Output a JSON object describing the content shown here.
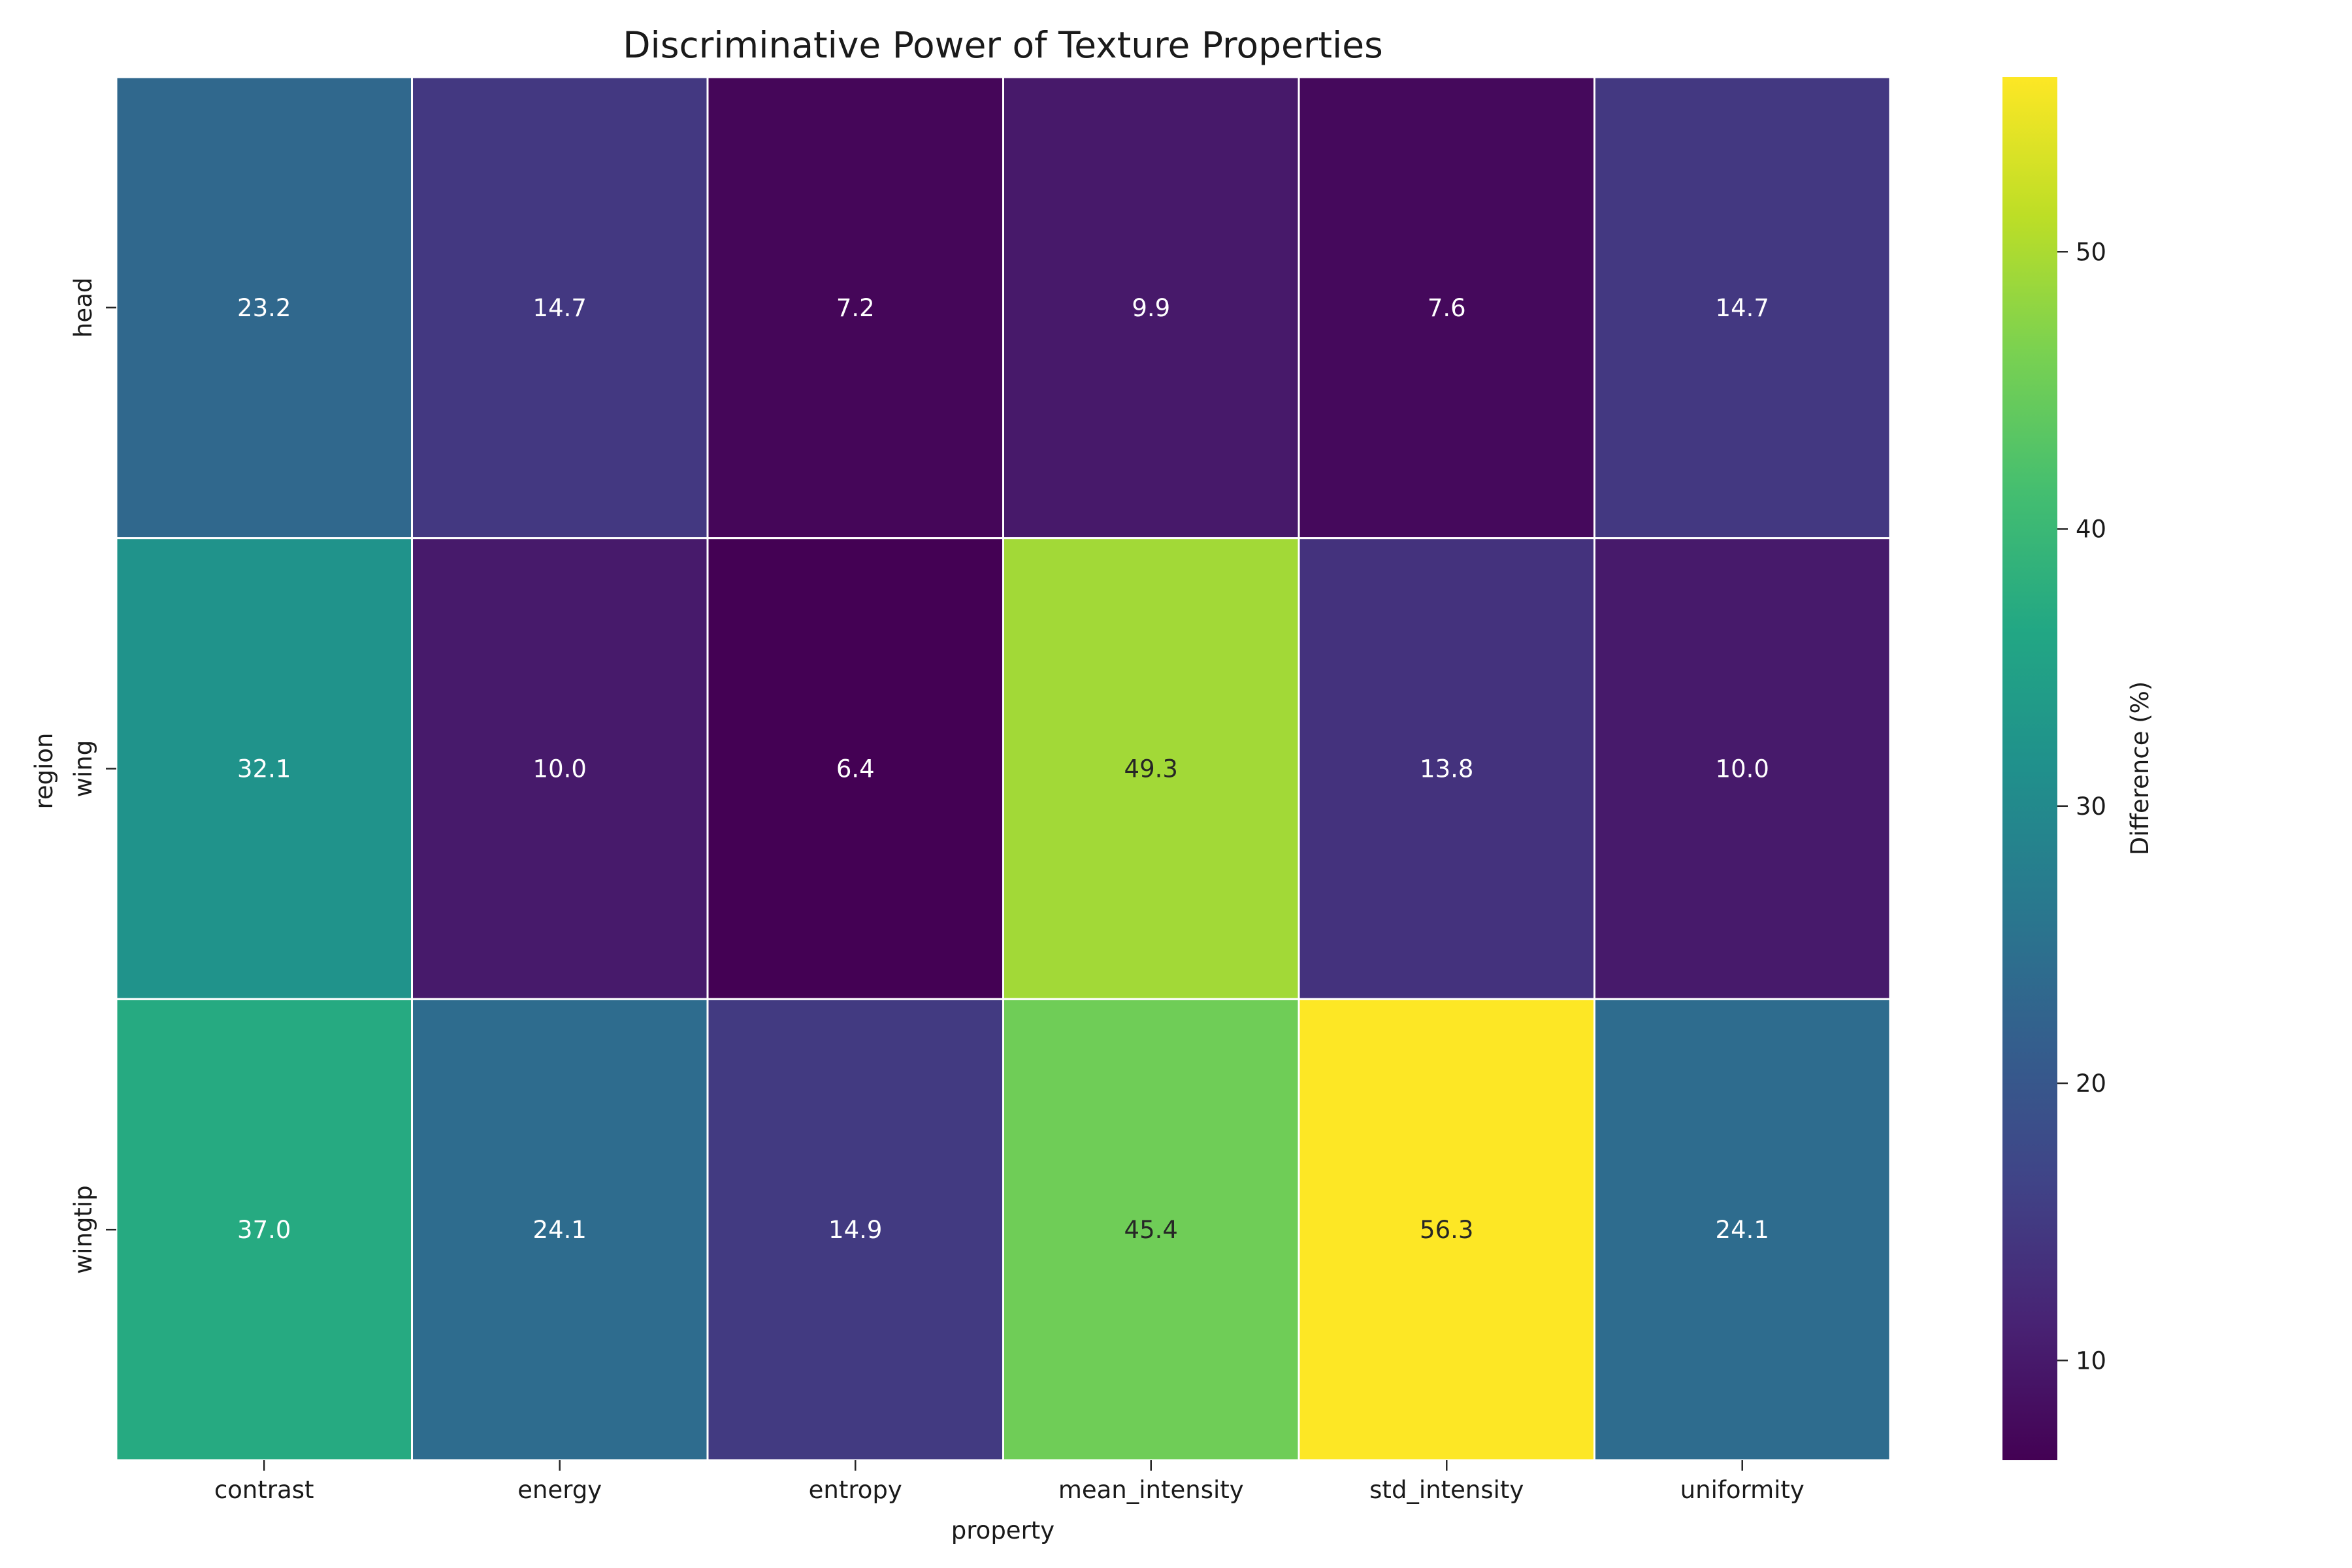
{
  "chart_data": {
    "type": "heatmap",
    "title": "Discriminative Power of Texture Properties",
    "xlabel": "property",
    "ylabel": "region",
    "x_categories": [
      "contrast",
      "energy",
      "entropy",
      "mean_intensity",
      "std_intensity",
      "uniformity"
    ],
    "y_categories": [
      "head",
      "wing",
      "wingtip"
    ],
    "values": [
      [
        23.2,
        14.7,
        7.2,
        9.9,
        7.6,
        14.7
      ],
      [
        32.1,
        10.0,
        6.4,
        49.3,
        13.8,
        10.0
      ],
      [
        37.0,
        24.1,
        14.9,
        45.4,
        56.3,
        24.1
      ]
    ],
    "colormap": "viridis",
    "color_range": [
      6.4,
      56.3
    ],
    "colorbar": {
      "label": "Difference (%)",
      "ticks": [
        10,
        20,
        30,
        40,
        50
      ]
    },
    "grid": false,
    "cell_border_color": "#ffffff",
    "annotations": true
  }
}
